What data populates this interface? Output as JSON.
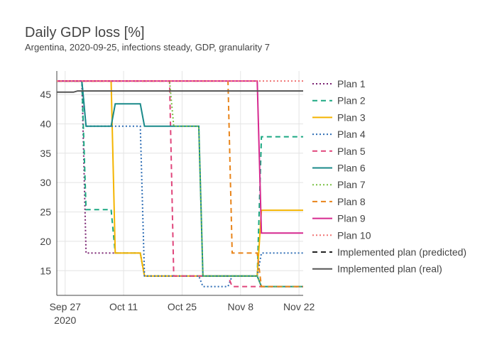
{
  "chart_data": {
    "type": "line",
    "title": "Daily GDP loss [%]",
    "subtitle": "Argentina, 2020-09-25, infections steady, GDP, granularity 7",
    "xlabel": "",
    "ylabel": "",
    "x_ticks": [
      {
        "date": "2020-09-27",
        "label": "Sep 27",
        "sublabel": "2020"
      },
      {
        "date": "2020-10-11",
        "label": "Oct 11",
        "sublabel": ""
      },
      {
        "date": "2020-10-25",
        "label": "Oct 25",
        "sublabel": ""
      },
      {
        "date": "2020-11-08",
        "label": "Nov 8",
        "sublabel": ""
      },
      {
        "date": "2020-11-22",
        "label": "Nov 22",
        "sublabel": ""
      }
    ],
    "y_ticks": [
      15,
      20,
      25,
      30,
      35,
      40,
      45
    ],
    "xlim": [
      "2020-09-25",
      "2020-11-23"
    ],
    "ylim": [
      10.8,
      49.0
    ],
    "grid": true,
    "legend_position": "right",
    "series": [
      {
        "name": "Plan 1",
        "color": "#7a2372",
        "dash": "dot",
        "points": [
          [
            "2020-09-25",
            47.3
          ],
          [
            "2020-10-01",
            47.3
          ],
          [
            "2020-10-02",
            18.0
          ],
          [
            "2020-10-08",
            18.0
          ],
          [
            "2020-10-09",
            18.0
          ],
          [
            "2020-10-15",
            18.0
          ],
          [
            "2020-10-16",
            14.1
          ],
          [
            "2020-11-12",
            14.1
          ],
          [
            "2020-11-13",
            12.3
          ],
          [
            "2020-11-23",
            12.3
          ]
        ]
      },
      {
        "name": "Plan 2",
        "color": "#1ba882",
        "dash": "dash",
        "points": [
          [
            "2020-09-25",
            47.3
          ],
          [
            "2020-10-01",
            47.3
          ],
          [
            "2020-10-02",
            25.4
          ],
          [
            "2020-10-08",
            25.4
          ],
          [
            "2020-10-09",
            18.0
          ],
          [
            "2020-10-15",
            18.0
          ],
          [
            "2020-10-16",
            14.1
          ],
          [
            "2020-11-12",
            14.1
          ],
          [
            "2020-11-13",
            37.8
          ],
          [
            "2020-11-23",
            37.8
          ]
        ]
      },
      {
        "name": "Plan 3",
        "color": "#f4b400",
        "dash": "solid",
        "points": [
          [
            "2020-09-25",
            47.3
          ],
          [
            "2020-10-08",
            47.3
          ],
          [
            "2020-10-09",
            18.0
          ],
          [
            "2020-10-15",
            18.0
          ],
          [
            "2020-10-16",
            14.1
          ],
          [
            "2020-11-12",
            14.1
          ],
          [
            "2020-11-13",
            25.3
          ],
          [
            "2020-11-23",
            25.3
          ]
        ]
      },
      {
        "name": "Plan 4",
        "color": "#2f6eb5",
        "dash": "dot",
        "points": [
          [
            "2020-09-25",
            47.3
          ],
          [
            "2020-10-01",
            47.3
          ],
          [
            "2020-10-02",
            39.6
          ],
          [
            "2020-10-15",
            39.6
          ],
          [
            "2020-10-16",
            14.1
          ],
          [
            "2020-10-29",
            14.1
          ],
          [
            "2020-10-30",
            12.3
          ],
          [
            "2020-11-05",
            12.3
          ],
          [
            "2020-11-06",
            14.1
          ],
          [
            "2020-11-12",
            14.1
          ],
          [
            "2020-11-13",
            18.0
          ],
          [
            "2020-11-23",
            18.0
          ]
        ]
      },
      {
        "name": "Plan 5",
        "color": "#e0457b",
        "dash": "dash",
        "points": [
          [
            "2020-09-25",
            47.3
          ],
          [
            "2020-10-22",
            47.3
          ],
          [
            "2020-10-23",
            14.1
          ],
          [
            "2020-11-05",
            14.1
          ],
          [
            "2020-11-06",
            12.3
          ],
          [
            "2020-11-23",
            12.3
          ]
        ]
      },
      {
        "name": "Plan 6",
        "color": "#1a8a8a",
        "dash": "solid",
        "points": [
          [
            "2020-09-25",
            47.3
          ],
          [
            "2020-10-01",
            47.3
          ],
          [
            "2020-10-02",
            39.6
          ],
          [
            "2020-10-08",
            39.6
          ],
          [
            "2020-10-09",
            43.4
          ],
          [
            "2020-10-15",
            43.4
          ],
          [
            "2020-10-16",
            39.6
          ],
          [
            "2020-10-29",
            39.6
          ],
          [
            "2020-10-30",
            14.1
          ],
          [
            "2020-11-12",
            14.1
          ],
          [
            "2020-11-13",
            12.3
          ],
          [
            "2020-11-23",
            12.3
          ]
        ]
      },
      {
        "name": "Plan 7",
        "color": "#7ac143",
        "dash": "dot",
        "points": [
          [
            "2020-09-25",
            47.3
          ],
          [
            "2020-10-22",
            47.3
          ],
          [
            "2020-10-23",
            39.6
          ],
          [
            "2020-10-29",
            39.6
          ],
          [
            "2020-10-30",
            14.1
          ],
          [
            "2020-11-12",
            14.1
          ],
          [
            "2020-11-13",
            12.3
          ],
          [
            "2020-11-23",
            12.3
          ]
        ]
      },
      {
        "name": "Plan 8",
        "color": "#e8841a",
        "dash": "dash",
        "points": [
          [
            "2020-09-25",
            47.3
          ],
          [
            "2020-11-05",
            47.3
          ],
          [
            "2020-11-06",
            18.0
          ],
          [
            "2020-11-12",
            18.0
          ],
          [
            "2020-11-13",
            12.3
          ],
          [
            "2020-11-23",
            12.3
          ]
        ]
      },
      {
        "name": "Plan 9",
        "color": "#d6298f",
        "dash": "solid",
        "points": [
          [
            "2020-09-25",
            47.3
          ],
          [
            "2020-11-12",
            47.3
          ],
          [
            "2020-11-13",
            21.4
          ],
          [
            "2020-11-23",
            21.4
          ]
        ]
      },
      {
        "name": "Plan 10",
        "color": "#f07474",
        "dash": "dot",
        "points": [
          [
            "2020-09-25",
            47.3
          ],
          [
            "2020-11-23",
            47.3
          ]
        ]
      },
      {
        "name": "Implemented plan (predicted)",
        "color": "#222222",
        "dash": "dash",
        "points": []
      },
      {
        "name": "Implemented plan (real)",
        "color": "#555555",
        "dash": "solid",
        "points": [
          [
            "2020-09-25",
            45.4
          ],
          [
            "2020-09-29",
            45.4
          ],
          [
            "2020-09-30",
            45.6
          ],
          [
            "2020-11-23",
            45.6
          ]
        ]
      }
    ]
  }
}
